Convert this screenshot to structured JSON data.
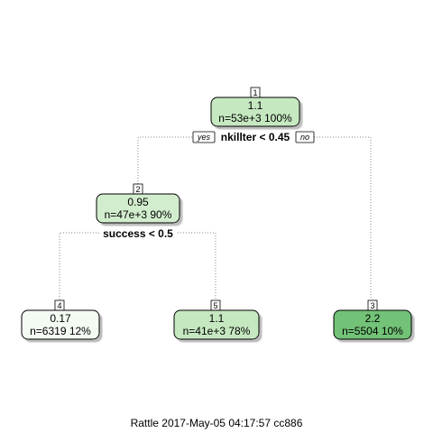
{
  "tree": {
    "nodes": {
      "n1": {
        "id": "1",
        "value": "1.1",
        "stats": "n=53e+3  100%",
        "fill": "#c6e8c1"
      },
      "n2": {
        "id": "2",
        "value": "0.95",
        "stats": "n=47e+3  90%",
        "fill": "#d2edcd"
      },
      "n3": {
        "id": "3",
        "value": "2.2",
        "stats": "n=5504  10%",
        "fill": "#72c277"
      },
      "n4": {
        "id": "4",
        "value": "0.17",
        "stats": "n=6319  12%",
        "fill": "#f4fbf3"
      },
      "n5": {
        "id": "5",
        "value": "1.1",
        "stats": "n=41e+3  78%",
        "fill": "#c6e8c1"
      }
    },
    "splits": {
      "root": "nkillter < 0.45",
      "left": "success < 0.5"
    },
    "branch_labels": {
      "yes": "yes",
      "no": "no"
    }
  },
  "footer": "Rattle 2017-May-05 04:17:57 cc886"
}
